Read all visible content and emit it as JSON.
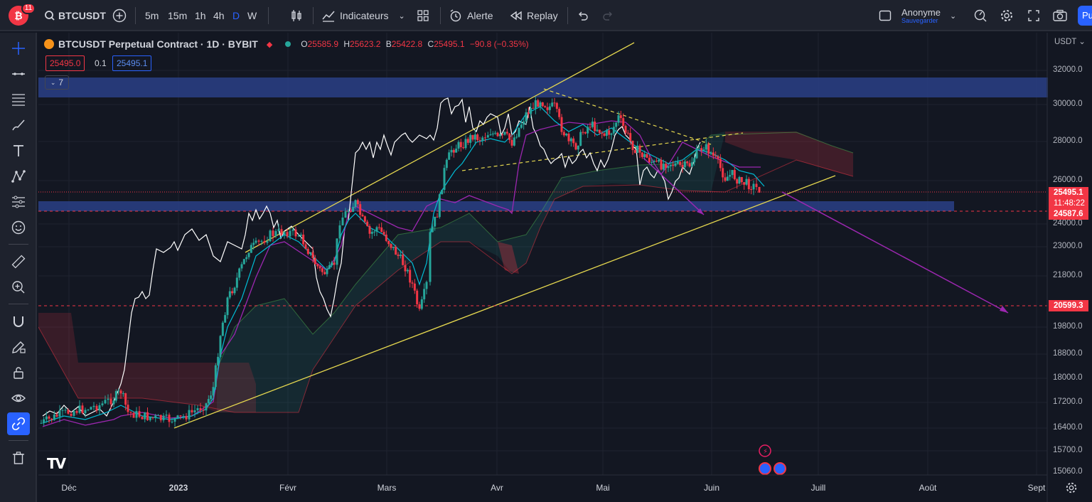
{
  "topbar": {
    "notification_count": "11",
    "symbol": "BTCUSDT",
    "timeframes": [
      "5m",
      "15m",
      "1h",
      "4h",
      "D",
      "W"
    ],
    "active_timeframe": "D",
    "indicators_label": "Indicateurs",
    "alert_label": "Alerte",
    "replay_label": "Replay",
    "user_name": "Anonyme",
    "user_sub": "Sauvegarder",
    "publish_label": "Pu"
  },
  "legend": {
    "title": "BTCUSDT Perpetual Contract · 1D · BYBIT",
    "open_label": "O",
    "open": "25585.9",
    "high_label": "H",
    "high": "25623.2",
    "low_label": "B",
    "low": "25422.8",
    "close_label": "C",
    "close": "25495.1",
    "change": "−90.8 (−0.35%)",
    "sell_price": "25495.0",
    "spread": "0.1",
    "buy_price": "25495.1",
    "collapsed_count": "7"
  },
  "price_axis": {
    "currency": "USDT",
    "labels": [
      "32000.0",
      "30000.0",
      "28000.0",
      "26000.0",
      "24000.0",
      "23000.0",
      "21800.0",
      "20600.0",
      "19800.0",
      "18800.0",
      "18000.0",
      "17200.0",
      "16400.0",
      "15700.0",
      "15060.0"
    ],
    "current_price": "25495.1",
    "countdown": "11:48:22",
    "level_1": "24587.6",
    "level_2": "20599.3"
  },
  "time_axis": {
    "labels": [
      "Déc",
      "2023",
      "Févr",
      "Mars",
      "Avr",
      "Mai",
      "Juin",
      "Juill",
      "Août",
      "Sept"
    ]
  },
  "colors": {
    "up": "#26a69a",
    "down": "#f23645",
    "accent": "#2962ff",
    "trendline": "#e6d84f",
    "overlay": "#ffffff",
    "kijun": "#9c27b0",
    "tenkan": "#00bcd4"
  },
  "watermark": "TV"
}
